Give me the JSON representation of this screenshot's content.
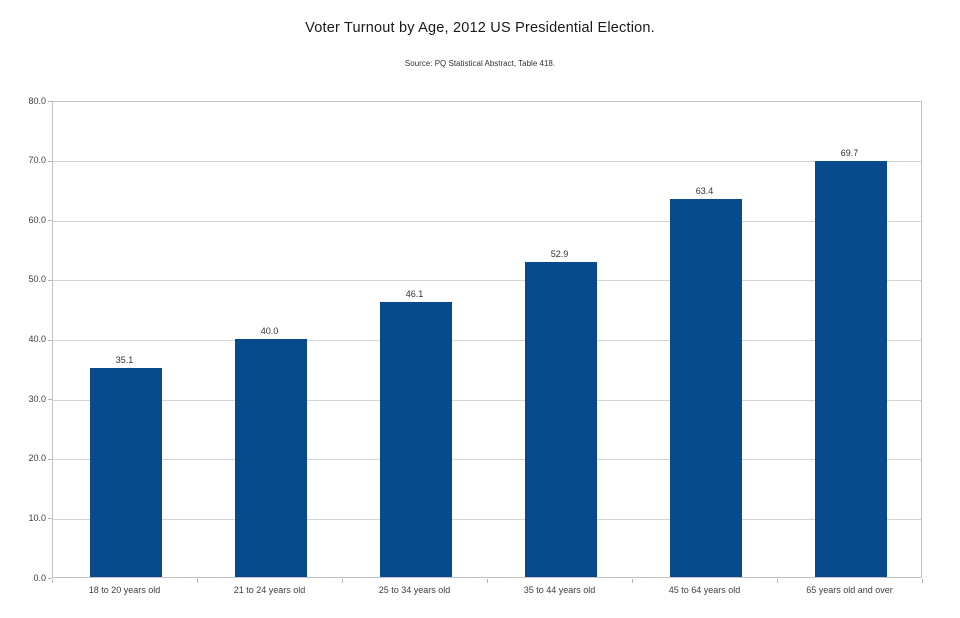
{
  "chart_data": {
    "type": "bar",
    "title": "Voter Turnout by Age, 2012 US Presidential Election.",
    "subtitle": "Source: PQ Statistical Abstract, Table 418.",
    "categories": [
      "18 to 20 years old",
      "21 to 24 years old",
      "25 to 34 years old",
      "35 to 44 years old",
      "45 to 64 years old",
      "65 years old and over"
    ],
    "values": [
      35.1,
      40.0,
      46.1,
      52.9,
      63.4,
      69.7
    ],
    "data_labels": [
      "35.1",
      "40.0",
      "46.1",
      "52.9",
      "63.4",
      "69.7"
    ],
    "xlabel": "",
    "ylabel": "",
    "ylim": [
      0,
      80
    ],
    "ytick_step": 10,
    "ytick_labels": [
      "0.0",
      "10.0",
      "20.0",
      "30.0",
      "40.0",
      "50.0",
      "60.0",
      "70.0",
      "80.0"
    ],
    "grid": "horizontal",
    "legend_position": "none",
    "bar_color": "#074b8c",
    "grid_color": "#d4d4d4",
    "axis_color": "#b5b5b5",
    "label_color": "#404040",
    "title_color": "#1a1a1a"
  }
}
